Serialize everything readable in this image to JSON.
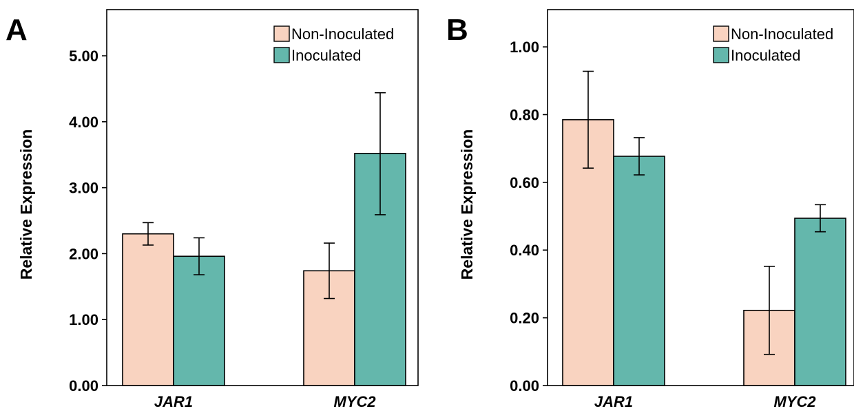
{
  "panels": [
    {
      "letter": "A"
    },
    {
      "letter": "B"
    }
  ],
  "colors": {
    "non_inoculated": "#f9d3c0",
    "inoculated": "#64b7ac"
  },
  "chart_data": [
    {
      "type": "bar",
      "categories": [
        "JAR1",
        "MYC2"
      ],
      "ylabel": "Relative Expression",
      "xlabel": "",
      "ylim": [
        0,
        5.7
      ],
      "yticks": [
        "0.00",
        "1.00",
        "2.00",
        "3.00",
        "4.00",
        "5.00"
      ],
      "ytick_values": [
        0,
        1,
        2,
        3,
        4,
        5
      ],
      "legend": "top-right",
      "series": [
        {
          "name": "Non-Inoculated",
          "values": [
            2.3,
            1.74
          ],
          "err_low": [
            2.13,
            1.32
          ],
          "err_high": [
            2.47,
            2.16
          ]
        },
        {
          "name": "Inoculated",
          "values": [
            1.96,
            3.52
          ],
          "err_low": [
            1.68,
            2.59
          ],
          "err_high": [
            2.24,
            4.44
          ]
        }
      ]
    },
    {
      "type": "bar",
      "categories": [
        "JAR1",
        "MYC2"
      ],
      "ylabel": "Relative Expression",
      "xlabel": "",
      "ylim": [
        0,
        1.11
      ],
      "yticks": [
        "0.00",
        "0.20",
        "0.40",
        "0.60",
        "0.80",
        "1.00"
      ],
      "ytick_values": [
        0,
        0.2,
        0.4,
        0.6,
        0.8,
        1.0
      ],
      "legend": "top-right",
      "series": [
        {
          "name": "Non-Inoculated",
          "values": [
            0.785,
            0.222
          ],
          "err_low": [
            0.642,
            0.092
          ],
          "err_high": [
            0.928,
            0.352
          ]
        },
        {
          "name": "Inoculated",
          "values": [
            0.677,
            0.494
          ],
          "err_low": [
            0.622,
            0.454
          ],
          "err_high": [
            0.732,
            0.534
          ]
        }
      ]
    }
  ]
}
